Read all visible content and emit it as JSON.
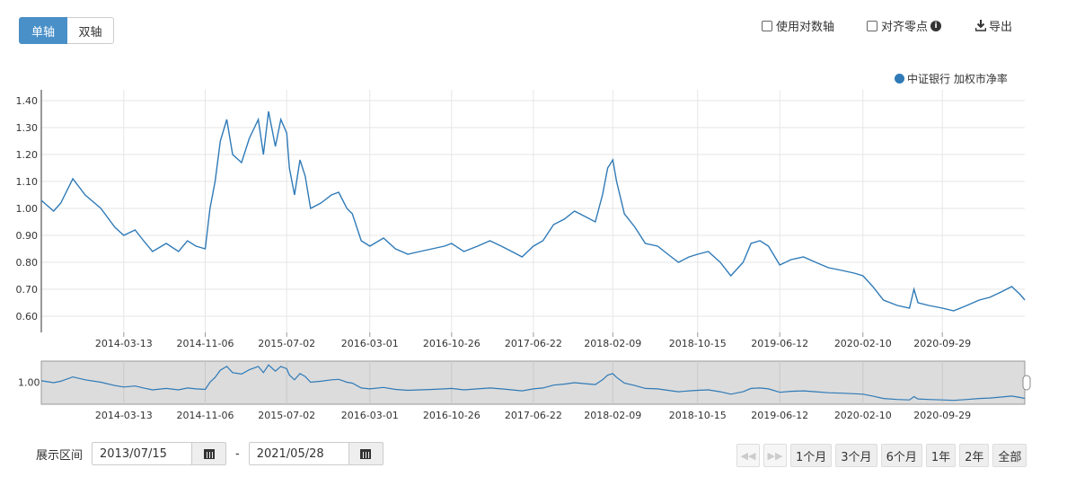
{
  "toolbar": {
    "single_axis": "单轴",
    "dual_axis": "双轴",
    "log_axis_label": "使用对数轴",
    "align_zero_label": "对齐零点",
    "export_label": "导出"
  },
  "range": {
    "label": "展示区间",
    "start": "2013/07/15",
    "separator": "-",
    "end": "2021/05/28"
  },
  "period_buttons": [
    "1个月",
    "3个月",
    "6个月",
    "1年",
    "2年",
    "全部"
  ],
  "colors": {
    "line": "#2f7ab7",
    "accent": "#4a90c8",
    "navigator_bg": "#dcdcdc"
  },
  "chart_data": {
    "type": "line",
    "series": [
      {
        "name": "中证银行 加权市净率",
        "x": [
          "2013-07-15",
          "2013-08-20",
          "2013-09-10",
          "2013-10-15",
          "2013-11-20",
          "2014-01-05",
          "2014-02-15",
          "2014-03-13",
          "2014-04-15",
          "2014-05-10",
          "2014-06-05",
          "2014-07-15",
          "2014-08-20",
          "2014-09-15",
          "2014-10-10",
          "2014-11-06",
          "2014-11-20",
          "2014-12-05",
          "2014-12-20",
          "2015-01-08",
          "2015-01-25",
          "2015-02-20",
          "2015-03-15",
          "2015-04-10",
          "2015-04-25",
          "2015-05-10",
          "2015-05-30",
          "2015-06-15",
          "2015-07-02",
          "2015-07-10",
          "2015-07-25",
          "2015-08-10",
          "2015-08-25",
          "2015-09-10",
          "2015-10-10",
          "2015-11-10",
          "2015-12-01",
          "2015-12-25",
          "2016-01-10",
          "2016-02-05",
          "2016-03-01",
          "2016-04-10",
          "2016-05-15",
          "2016-06-20",
          "2016-07-25",
          "2016-08-30",
          "2016-10-05",
          "2016-10-26",
          "2016-12-01",
          "2017-01-10",
          "2017-02-15",
          "2017-03-20",
          "2017-04-20",
          "2017-05-20",
          "2017-06-22",
          "2017-07-20",
          "2017-08-20",
          "2017-09-20",
          "2017-10-20",
          "2017-11-20",
          "2017-12-20",
          "2018-01-10",
          "2018-01-25",
          "2018-02-09",
          "2018-02-20",
          "2018-03-15",
          "2018-04-15",
          "2018-05-15",
          "2018-06-20",
          "2018-07-20",
          "2018-08-20",
          "2018-09-20",
          "2018-10-15",
          "2018-11-15",
          "2018-12-20",
          "2019-01-20",
          "2019-02-25",
          "2019-03-20",
          "2019-04-15",
          "2019-05-10",
          "2019-06-12",
          "2019-07-15",
          "2019-08-20",
          "2019-09-25",
          "2019-11-01",
          "2019-12-10",
          "2020-01-15",
          "2020-02-10",
          "2020-03-10",
          "2020-04-10",
          "2020-05-20",
          "2020-06-25",
          "2020-07-08",
          "2020-07-20",
          "2020-08-20",
          "2020-09-29",
          "2020-11-01",
          "2020-12-10",
          "2021-01-15",
          "2021-02-15",
          "2021-03-20",
          "2021-04-20",
          "2021-05-15",
          "2021-05-28"
        ],
        "y": [
          1.03,
          0.99,
          1.02,
          1.11,
          1.05,
          1.0,
          0.93,
          0.9,
          0.92,
          0.88,
          0.84,
          0.87,
          0.84,
          0.88,
          0.86,
          0.85,
          1.0,
          1.1,
          1.25,
          1.33,
          1.2,
          1.17,
          1.26,
          1.33,
          1.2,
          1.36,
          1.23,
          1.33,
          1.28,
          1.15,
          1.05,
          1.18,
          1.12,
          1.0,
          1.02,
          1.05,
          1.06,
          1.0,
          0.98,
          0.88,
          0.86,
          0.89,
          0.85,
          0.83,
          0.84,
          0.85,
          0.86,
          0.87,
          0.84,
          0.86,
          0.88,
          0.86,
          0.84,
          0.82,
          0.86,
          0.88,
          0.94,
          0.96,
          0.99,
          0.97,
          0.95,
          1.05,
          1.15,
          1.18,
          1.1,
          0.98,
          0.93,
          0.87,
          0.86,
          0.83,
          0.8,
          0.82,
          0.83,
          0.84,
          0.8,
          0.75,
          0.8,
          0.87,
          0.88,
          0.86,
          0.79,
          0.81,
          0.82,
          0.8,
          0.78,
          0.77,
          0.76,
          0.75,
          0.71,
          0.66,
          0.64,
          0.63,
          0.7,
          0.65,
          0.64,
          0.63,
          0.62,
          0.64,
          0.66,
          0.67,
          0.69,
          0.71,
          0.68,
          0.66
        ]
      }
    ],
    "x_ticks": [
      "2014-03-13",
      "2014-11-06",
      "2015-07-02",
      "2016-03-01",
      "2016-10-26",
      "2017-06-22",
      "2018-02-09",
      "2018-10-15",
      "2019-06-12",
      "2020-02-10",
      "2020-09-29"
    ],
    "y_ticks": [
      "1.40",
      "1.30",
      "1.20",
      "1.10",
      "1.00",
      "0.90",
      "0.80",
      "0.70",
      "0.60"
    ],
    "ylim": [
      0.54,
      1.44
    ],
    "xlim": [
      "2013-07-15",
      "2021-05-28"
    ],
    "navigator_y_tick": "1.00",
    "grid": true,
    "legend_position": "top-right"
  }
}
